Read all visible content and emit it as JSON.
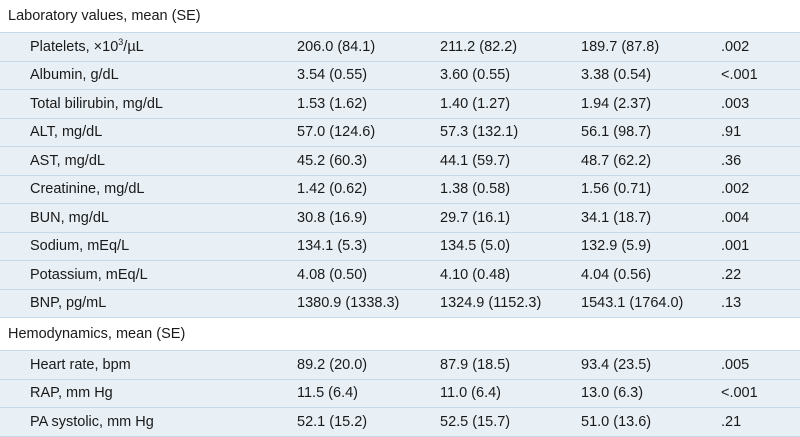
{
  "sections": [
    {
      "title": "Laboratory values, mean (SE)",
      "rows": [
        {
          "label_pre": "Platelets, ×10",
          "label_sup": "3",
          "label_post": "/µL",
          "v1": "206.0 (84.1)",
          "v2": "211.2 (82.2)",
          "v3": "189.7 (87.8)",
          "p": ".002"
        },
        {
          "label": "Albumin, g/dL",
          "v1": "3.54 (0.55)",
          "v2": "3.60 (0.55)",
          "v3": "3.38 (0.54)",
          "p": "<.001"
        },
        {
          "label": "Total bilirubin, mg/dL",
          "v1": "1.53 (1.62)",
          "v2": "1.40 (1.27)",
          "v3": "1.94 (2.37)",
          "p": ".003"
        },
        {
          "label": "ALT, mg/dL",
          "v1": "57.0 (124.6)",
          "v2": "57.3 (132.1)",
          "v3": "56.1 (98.7)",
          "p": ".91"
        },
        {
          "label": "AST, mg/dL",
          "v1": "45.2 (60.3)",
          "v2": "44.1 (59.7)",
          "v3": "48.7 (62.2)",
          "p": ".36"
        },
        {
          "label": "Creatinine, mg/dL",
          "v1": "1.42 (0.62)",
          "v2": "1.38 (0.58)",
          "v3": "1.56 (0.71)",
          "p": ".002"
        },
        {
          "label": "BUN, mg/dL",
          "v1": "30.8 (16.9)",
          "v2": "29.7 (16.1)",
          "v3": "34.1 (18.7)",
          "p": ".004"
        },
        {
          "label": "Sodium, mEq/L",
          "v1": "134.1 (5.3)",
          "v2": "134.5 (5.0)",
          "v3": "132.9 (5.9)",
          "p": ".001"
        },
        {
          "label": "Potassium, mEq/L",
          "v1": "4.08 (0.50)",
          "v2": "4.10 (0.48)",
          "v3": "4.04 (0.56)",
          "p": ".22"
        },
        {
          "label": "BNP, pg/mL",
          "v1": "1380.9 (1338.3)",
          "v2": "1324.9 (1152.3)",
          "v3": "1543.1 (1764.0)",
          "p": ".13"
        }
      ]
    },
    {
      "title": "Hemodynamics, mean (SE)",
      "rows": [
        {
          "label": "Heart rate, bpm",
          "v1": "89.2 (20.0)",
          "v2": "87.9 (18.5)",
          "v3": "93.4 (23.5)",
          "p": ".005"
        },
        {
          "label": "RAP, mm Hg",
          "v1": "11.5 (6.4)",
          "v2": "11.0 (6.4)",
          "v3": "13.0 (6.3)",
          "p": "<.001"
        },
        {
          "label": "PA systolic, mm Hg",
          "v1": "52.1 (15.2)",
          "v2": "52.5 (15.7)",
          "v3": "51.0 (13.6)",
          "p": ".21"
        }
      ]
    }
  ]
}
